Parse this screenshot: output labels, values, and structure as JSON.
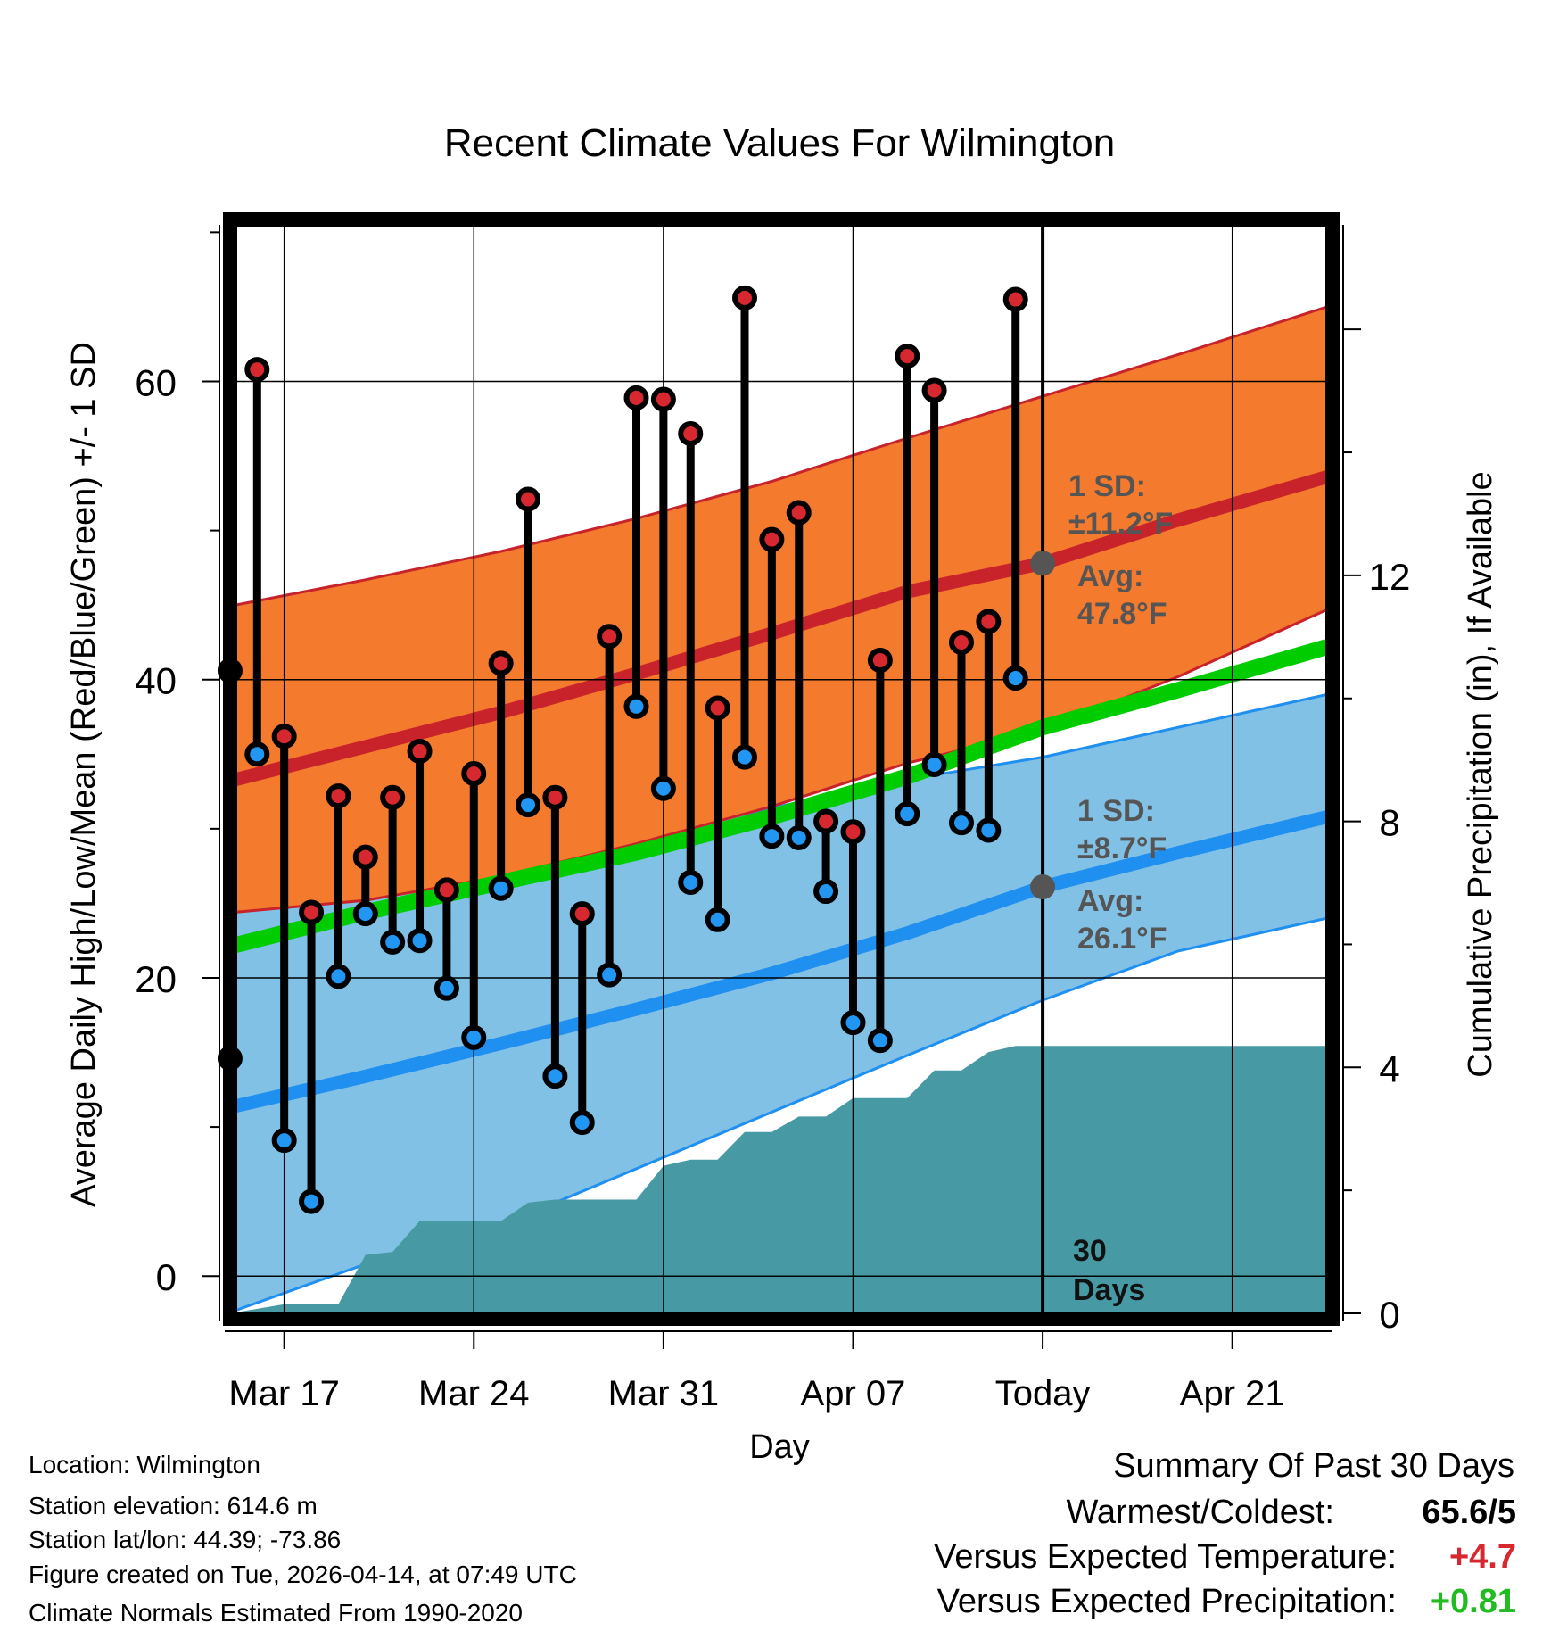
{
  "chart_data": {
    "type": "line",
    "title": "Recent Climate Values For Wilmington",
    "xlabel": "Day",
    "ylabel": "Average Daily High/Low/Mean (Red/Blue/Green) +/- 1 SD",
    "y2label": "Cumulative Precipitation (in), If Available",
    "xlim_days": [
      -29.8,
      10.5
    ],
    "ylim": [
      -2.5,
      70.5
    ],
    "y2lim": [
      0,
      17.7
    ],
    "x_ticks": [
      {
        "day": -28,
        "label": "Mar 17"
      },
      {
        "day": -21,
        "label": "Mar 24"
      },
      {
        "day": -14,
        "label": "Mar 31"
      },
      {
        "day": -7,
        "label": "Apr 07"
      },
      {
        "day": 0,
        "label": "Today"
      },
      {
        "day": 7,
        "label": "Apr 21"
      }
    ],
    "y_ticks": [
      0,
      20,
      40,
      60
    ],
    "y2_ticks": [
      0,
      4,
      8,
      12
    ],
    "normals": {
      "days": [
        -29.8,
        -25,
        -20,
        -15,
        -10,
        -5,
        0,
        5,
        10.5
      ],
      "high_avg": [
        33.3,
        35.5,
        37.8,
        40.4,
        43.1,
        45.9,
        47.8,
        50.7,
        53.6
      ],
      "high_plus_sd": [
        45.0,
        46.7,
        48.6,
        50.8,
        53.3,
        56.2,
        59.0,
        61.8,
        65.0
      ],
      "high_minus_sd": [
        24.4,
        25.2,
        26.8,
        29.0,
        31.5,
        34.4,
        36.6,
        40.2,
        44.7
      ],
      "mean_avg": [
        22.2,
        24.4,
        26.4,
        28.4,
        30.8,
        33.5,
        36.8,
        39.3,
        42.2
      ],
      "low_avg": [
        11.4,
        13.4,
        15.6,
        17.9,
        20.3,
        23.0,
        26.1,
        28.4,
        30.8
      ],
      "low_plus_sd": [
        24.9,
        26.0,
        27.5,
        29.3,
        31.4,
        33.3,
        34.8,
        36.8,
        39.0
      ],
      "low_minus_sd": [
        -2.3,
        0.8,
        3.4,
        7.2,
        11.0,
        14.8,
        18.5,
        21.8,
        24.0
      ]
    },
    "observations": {
      "days": [
        -30,
        -29,
        -28,
        -27,
        -26,
        -25,
        -24,
        -23,
        -22,
        -21,
        -20,
        -19,
        -18,
        -17,
        -16,
        -15,
        -14,
        -13,
        -12,
        -11,
        -10,
        -9,
        -8,
        -7,
        -6,
        -5,
        -4,
        -3,
        -2,
        -1
      ],
      "highs": [
        40.6,
        60.8,
        36.2,
        24.4,
        32.2,
        28.1,
        32.1,
        35.2,
        25.9,
        33.7,
        41.1,
        52.1,
        32.1,
        24.3,
        42.9,
        58.9,
        58.8,
        56.5,
        38.1,
        65.6,
        49.4,
        51.2,
        30.5,
        29.8,
        41.3,
        61.7,
        59.4,
        42.5,
        43.9,
        65.5
      ],
      "lows": [
        14.6,
        35.0,
        9.1,
        5.0,
        20.1,
        24.3,
        22.4,
        22.5,
        19.3,
        16.0,
        26.0,
        31.6,
        13.4,
        10.3,
        20.2,
        38.2,
        32.7,
        26.4,
        23.9,
        34.8,
        29.5,
        29.4,
        25.8,
        17.0,
        15.8,
        31.0,
        34.3,
        30.4,
        29.9,
        40.1
      ]
    },
    "precipitation": {
      "days": [
        -30,
        -28,
        -26,
        -25,
        -24,
        -23,
        -20,
        -19,
        -18,
        -17,
        -16,
        -15,
        -14,
        -13,
        -12,
        -11,
        -10,
        -9,
        -8,
        -7,
        -6,
        -5,
        -4,
        -3,
        -2,
        -1,
        0,
        10.5
      ],
      "cumulative": [
        0,
        0.15,
        0.15,
        0.95,
        1.0,
        1.5,
        1.5,
        1.8,
        1.85,
        1.85,
        1.85,
        1.85,
        2.4,
        2.5,
        2.5,
        2.95,
        2.95,
        3.2,
        3.2,
        3.5,
        3.5,
        3.5,
        3.95,
        3.95,
        4.25,
        4.35,
        4.35,
        4.35
      ]
    },
    "annotations": {
      "high_sd": "1 SD:",
      "high_sd_val": "±11.2°F",
      "high_avg_label": "Avg:",
      "high_avg_val": "47.8°F",
      "low_sd": "1 SD:",
      "low_sd_val": "±8.7°F",
      "low_avg_label": "Avg:",
      "low_avg_val": "26.1°F",
      "window_1": "30",
      "window_2": "Days"
    },
    "colors": {
      "high_band": "#f47a2e",
      "high_line": "#c8232b",
      "low_band": "#82c1e6",
      "low_line": "#1f8ff0",
      "mean_line": "#00cc00",
      "precip": "#479aa3",
      "marker_high": "#d7282f",
      "marker_low": "#2196f3",
      "annotation": "#555555"
    }
  },
  "info": {
    "location": "Location: Wilmington",
    "elevation": "Station elevation: 614.6 m",
    "latlon": "Station lat/lon: 44.39; -73.86",
    "created": "Figure created on Tue, 2026-04-14, at 07:49 UTC",
    "normals": "Climate Normals Estimated From 1990-2020"
  },
  "summary": {
    "title": "Summary Of Past 30 Days",
    "warm_cold_label": "Warmest/Coldest:",
    "warm_cold_value": "65.6/5",
    "temp_label": "Versus Expected Temperature:",
    "temp_value": "+4.7",
    "temp_color": "#d7282f",
    "precip_label": "Versus Expected Precipitation:",
    "precip_value": "+0.81",
    "precip_color": "#22bb22"
  }
}
